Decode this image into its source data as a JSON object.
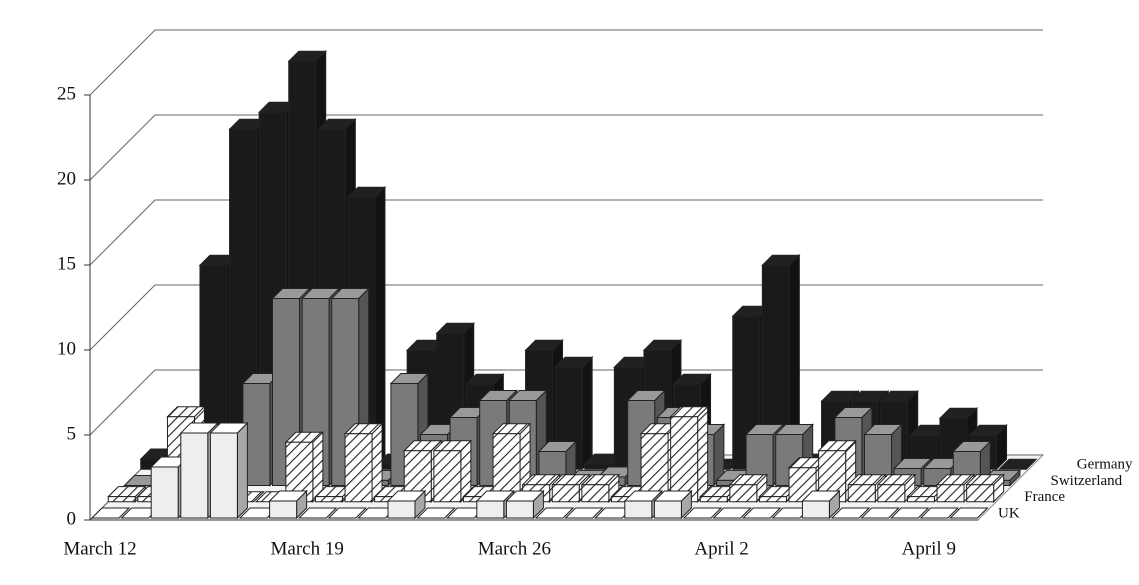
{
  "chart_data": {
    "type": "bar3d",
    "categories": [
      "March 12",
      null,
      null,
      null,
      null,
      null,
      null,
      "March 19",
      null,
      null,
      null,
      null,
      null,
      null,
      "March 26",
      null,
      null,
      null,
      null,
      null,
      null,
      "April 2",
      null,
      null,
      null,
      null,
      null,
      null,
      "April 9",
      null
    ],
    "series": [
      {
        "name": "UK",
        "color": "#eeeeee",
        "values": [
          0,
          0,
          3,
          5,
          5,
          0,
          1,
          0,
          0,
          0,
          1,
          0,
          0,
          1,
          1,
          0,
          0,
          0,
          1,
          1,
          0,
          0,
          0,
          0,
          1,
          0,
          0,
          0,
          0,
          0
        ]
      },
      {
        "name": "France",
        "color": "#ffffff",
        "hatch": true,
        "values": [
          0.3,
          0.3,
          5,
          0,
          0,
          0,
          3.5,
          0.3,
          4,
          0.3,
          3,
          3,
          0.3,
          4,
          1,
          1,
          1,
          0.3,
          4,
          5,
          0.3,
          1,
          0.3,
          2,
          3,
          1,
          1,
          0.3,
          1,
          1
        ]
      },
      {
        "name": "Switzerland",
        "color": "#7a7a7a",
        "values": [
          0,
          0.3,
          0.3,
          0.3,
          6,
          11,
          11,
          11,
          0.3,
          6,
          3,
          4,
          5,
          5,
          2,
          0.3,
          0.5,
          5,
          4,
          3,
          0.3,
          3,
          3,
          0.3,
          4,
          3,
          1,
          1,
          2,
          0.3
        ]
      },
      {
        "name": "Germany",
        "color": "#1a1a1a",
        "values": [
          0.6,
          0,
          12,
          20,
          21,
          24,
          20,
          16,
          0.3,
          7,
          8,
          5,
          0,
          7,
          6,
          0.3,
          6,
          7,
          5,
          0,
          9,
          12,
          0.3,
          4,
          4,
          4,
          2,
          3,
          2,
          0
        ]
      }
    ],
    "ylim": [
      0,
      25
    ],
    "yticks": [
      0,
      5,
      10,
      15,
      20,
      25
    ],
    "grid": true
  }
}
